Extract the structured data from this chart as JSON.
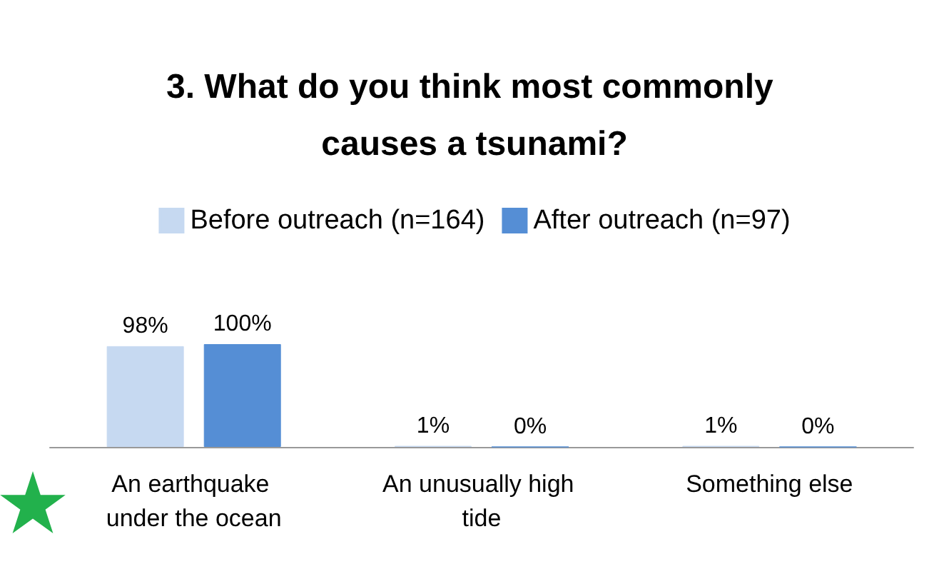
{
  "chart_data": {
    "type": "bar",
    "title": "3. What do you think most commonly causes a tsunami?",
    "categories": [
      "An earthquake under the ocean",
      "An unusually high tide",
      "Something else"
    ],
    "series": [
      {
        "name": "Before outreach (n=164)",
        "color": "#c6d9f1",
        "values": [
          98,
          1,
          1
        ],
        "value_labels": [
          "98%",
          "1%",
          "1%"
        ]
      },
      {
        "name": "After outreach (n=97)",
        "color": "#558ed5",
        "values": [
          100,
          0,
          0
        ],
        "value_labels": [
          "100%",
          "0%",
          "0%"
        ]
      }
    ],
    "legend": "top"
  }
}
